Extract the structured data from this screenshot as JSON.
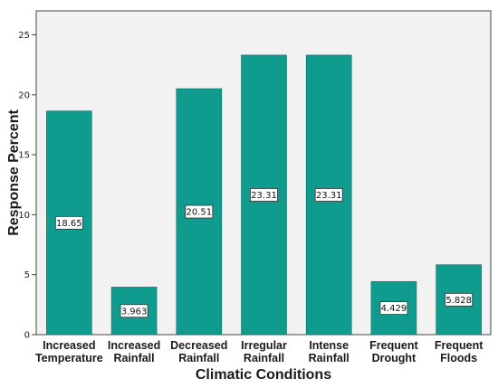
{
  "chart_data": {
    "type": "bar",
    "title": "",
    "xlabel": "Climatic Conditions",
    "ylabel": "Response Percent",
    "ylim": [
      0,
      27
    ],
    "yticks": [
      0,
      5,
      10,
      15,
      20,
      25
    ],
    "grid": false,
    "categories": [
      [
        "Increased",
        "Temperature"
      ],
      [
        "Increased",
        "Rainfall"
      ],
      [
        "Decreased",
        "Rainfall"
      ],
      [
        "Irregular",
        "Rainfall"
      ],
      [
        "Intense",
        "Rainfall"
      ],
      [
        "Frequent",
        "Drought"
      ],
      [
        "Frequent",
        "Floods"
      ]
    ],
    "values": [
      18.65,
      3.963,
      20.51,
      23.31,
      23.31,
      4.429,
      5.828
    ],
    "data_labels": [
      "18.65",
      "3.963",
      "20.51",
      "23.31",
      "23.31",
      "4.429",
      "5.828"
    ],
    "bar_color": "#0f9b8e",
    "plot_background": "#f2f2f2",
    "axis_color": "#444444"
  }
}
